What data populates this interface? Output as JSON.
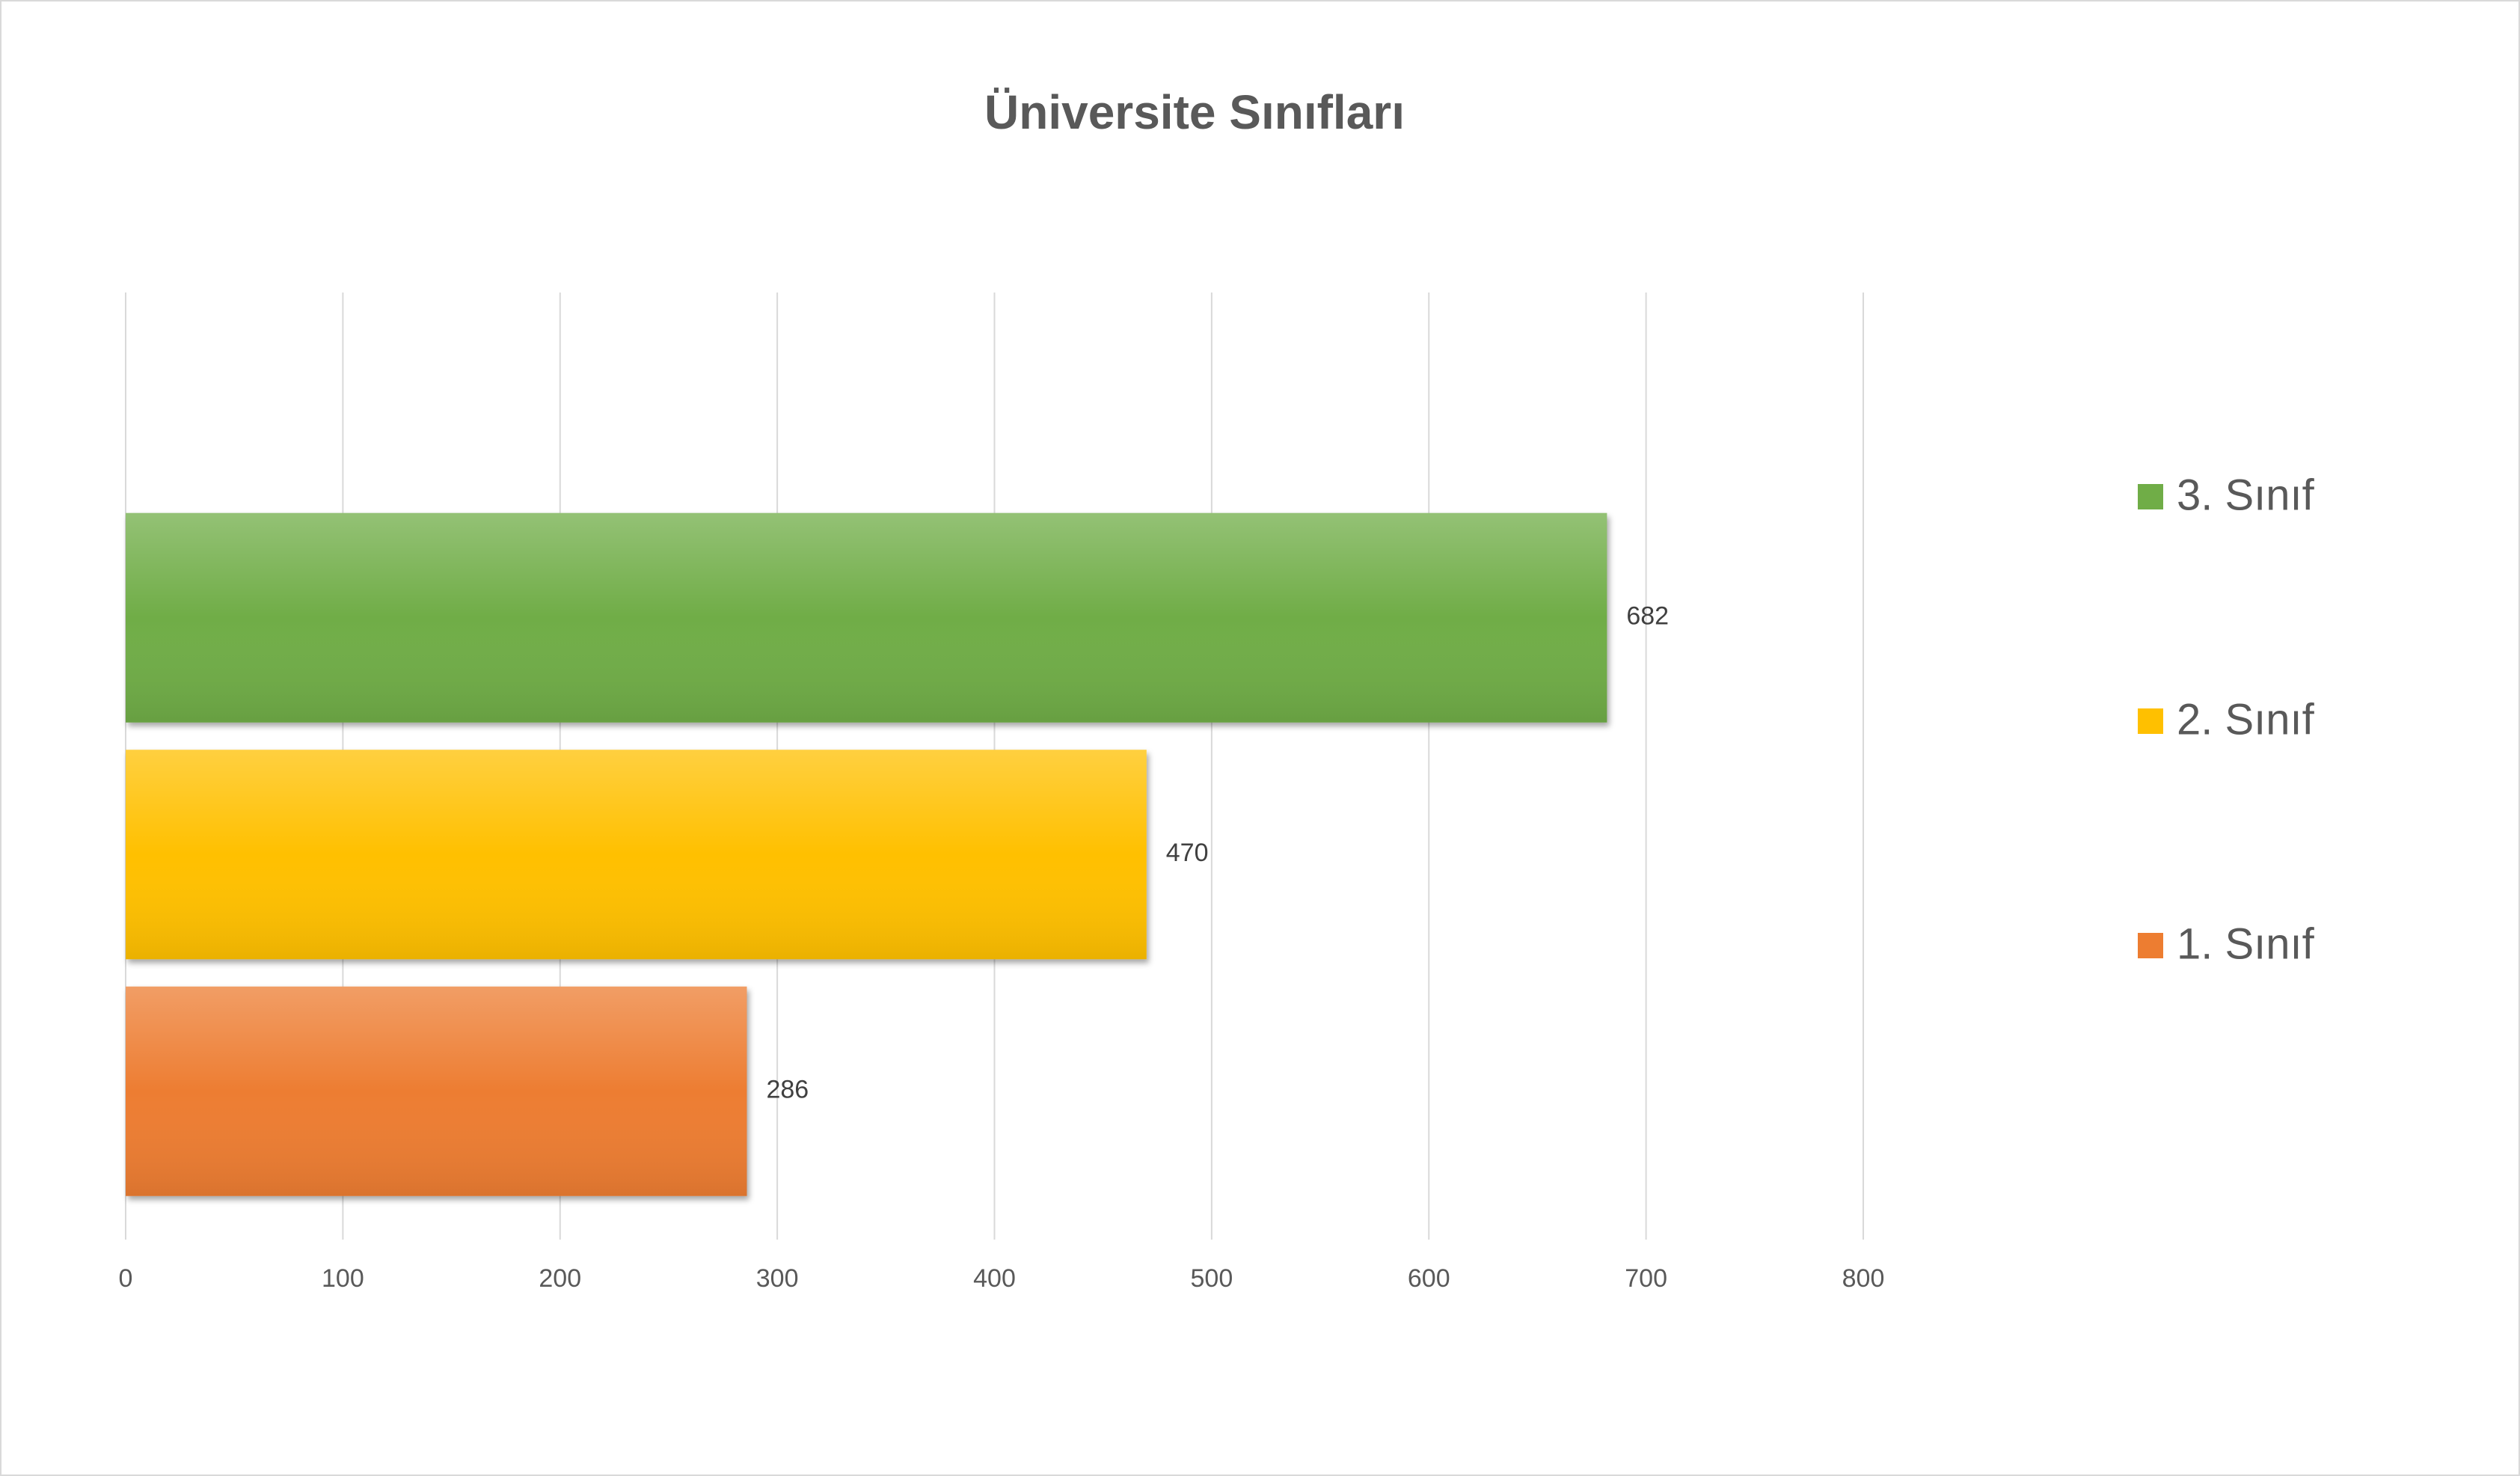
{
  "chart_data": {
    "type": "bar",
    "orientation": "horizontal",
    "title": "Üniversite Sınıfları",
    "categories": [
      null
    ],
    "series": [
      {
        "name": "1. Sınıf",
        "color": "#ed7d31",
        "values": [
          286
        ]
      },
      {
        "name": "2. Sınıf",
        "color": "#ffc000",
        "values": [
          470
        ]
      },
      {
        "name": "3. Sınıf",
        "color": "#70ad47",
        "values": [
          682
        ]
      }
    ],
    "xlim": [
      0,
      800
    ],
    "xticks": [
      0,
      100,
      200,
      300,
      400,
      500,
      600,
      700,
      800
    ],
    "grid": true,
    "legend": "right",
    "data_labels": true
  }
}
